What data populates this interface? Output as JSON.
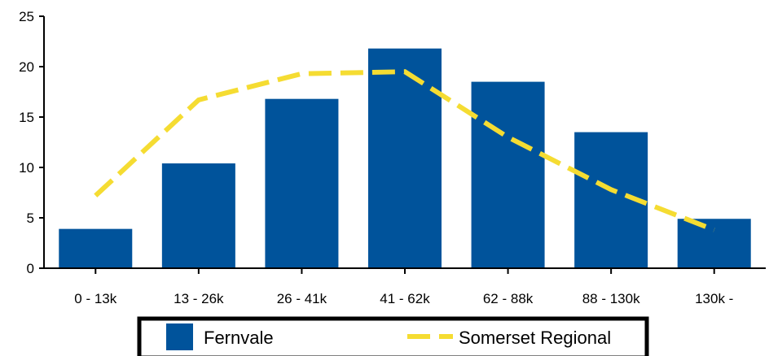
{
  "chart_data": {
    "type": "bar",
    "categories": [
      "0 - 13k",
      "13 - 26k",
      "26 - 41k",
      "41 - 62k",
      "62 - 88k",
      "88 - 130k",
      "130k -"
    ],
    "series": [
      {
        "name": "Fernvale",
        "type": "bar",
        "color": "#00539b",
        "values": [
          3.9,
          10.4,
          16.8,
          21.8,
          18.5,
          13.5,
          4.9
        ]
      },
      {
        "name": "Somerset Regional",
        "type": "line",
        "style": "dashed",
        "color": "#f5dc32",
        "values": [
          7.2,
          16.7,
          19.3,
          19.5,
          13.0,
          7.8,
          3.8
        ]
      }
    ],
    "yticks": [
      "0",
      "5",
      "10",
      "15",
      "20",
      "25"
    ],
    "ylim": [
      0,
      25
    ],
    "grid": false,
    "legend_position": "bottom"
  }
}
